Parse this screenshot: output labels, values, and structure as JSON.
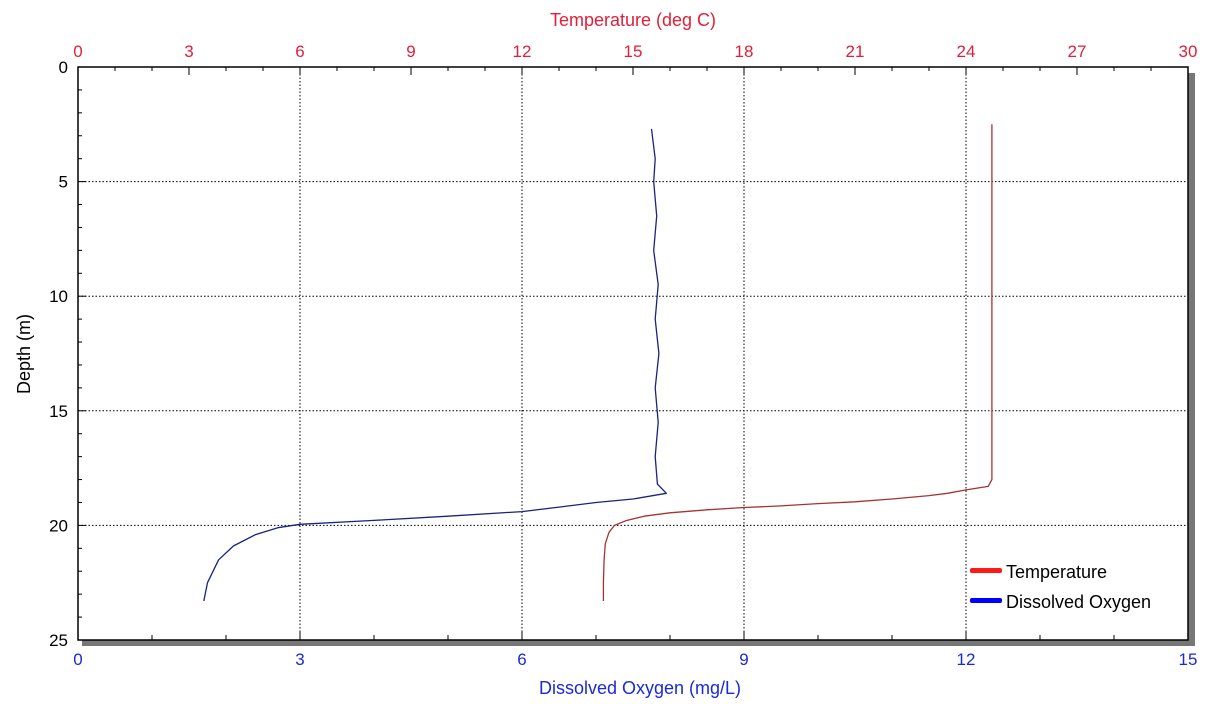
{
  "chart_data": {
    "type": "line",
    "title": "",
    "y_axis": {
      "label": "Depth (m)",
      "range": [
        0,
        25
      ],
      "inverted": true,
      "ticks": [
        0,
        5,
        10,
        15,
        20,
        25
      ]
    },
    "x_axis_top": {
      "label": "Temperature (deg C)",
      "range": [
        0,
        30
      ],
      "ticks": [
        0,
        3,
        6,
        9,
        12,
        15,
        18,
        21,
        24,
        27,
        30
      ]
    },
    "x_axis_bottom": {
      "label": "Dissolved Oxygen (mg/L)",
      "range": [
        0,
        15
      ],
      "ticks": [
        0,
        3,
        6,
        9,
        12,
        15
      ]
    },
    "grid": true,
    "legend_position": "bottom-right",
    "series": [
      {
        "name": "Temperature",
        "axis": "top",
        "color": "#ff1a1a",
        "line_color": "#a83232",
        "points": [
          [
            24.7,
            2.5
          ],
          [
            24.7,
            5
          ],
          [
            24.7,
            10
          ],
          [
            24.7,
            15
          ],
          [
            24.7,
            18.0
          ],
          [
            24.6,
            18.3
          ],
          [
            24.0,
            18.45
          ],
          [
            23.5,
            18.6
          ],
          [
            23.0,
            18.7
          ],
          [
            22.0,
            18.85
          ],
          [
            21.0,
            18.97
          ],
          [
            20.0,
            19.05
          ],
          [
            19.0,
            19.15
          ],
          [
            18.0,
            19.22
          ],
          [
            17.0,
            19.32
          ],
          [
            16.0,
            19.45
          ],
          [
            15.3,
            19.6
          ],
          [
            14.8,
            19.8
          ],
          [
            14.5,
            20.0
          ],
          [
            14.35,
            20.3
          ],
          [
            14.25,
            20.8
          ],
          [
            14.22,
            21.5
          ],
          [
            14.2,
            22.5
          ],
          [
            14.2,
            23.3
          ]
        ]
      },
      {
        "name": "Dissolved Oxygen",
        "axis": "bottom",
        "color": "#0000ff",
        "line_color": "#1a237e",
        "points": [
          [
            7.75,
            2.7
          ],
          [
            7.8,
            4
          ],
          [
            7.78,
            5
          ],
          [
            7.82,
            6.5
          ],
          [
            7.78,
            8
          ],
          [
            7.84,
            9.5
          ],
          [
            7.8,
            11
          ],
          [
            7.85,
            12.5
          ],
          [
            7.8,
            14
          ],
          [
            7.84,
            15.5
          ],
          [
            7.8,
            17
          ],
          [
            7.83,
            18.2
          ],
          [
            7.95,
            18.6
          ],
          [
            7.5,
            18.85
          ],
          [
            7.0,
            19.0
          ],
          [
            6.5,
            19.2
          ],
          [
            6.0,
            19.4
          ],
          [
            5.0,
            19.6
          ],
          [
            4.0,
            19.78
          ],
          [
            3.0,
            19.95
          ],
          [
            2.7,
            20.1
          ],
          [
            2.4,
            20.4
          ],
          [
            2.1,
            20.9
          ],
          [
            1.9,
            21.5
          ],
          [
            1.75,
            22.5
          ],
          [
            1.7,
            23.3
          ]
        ]
      }
    ]
  },
  "colors": {
    "top_axis": "#e0203a",
    "bottom_axis": "#1a2ad6",
    "grid": "#000000",
    "frame_shadow": "#777777"
  }
}
